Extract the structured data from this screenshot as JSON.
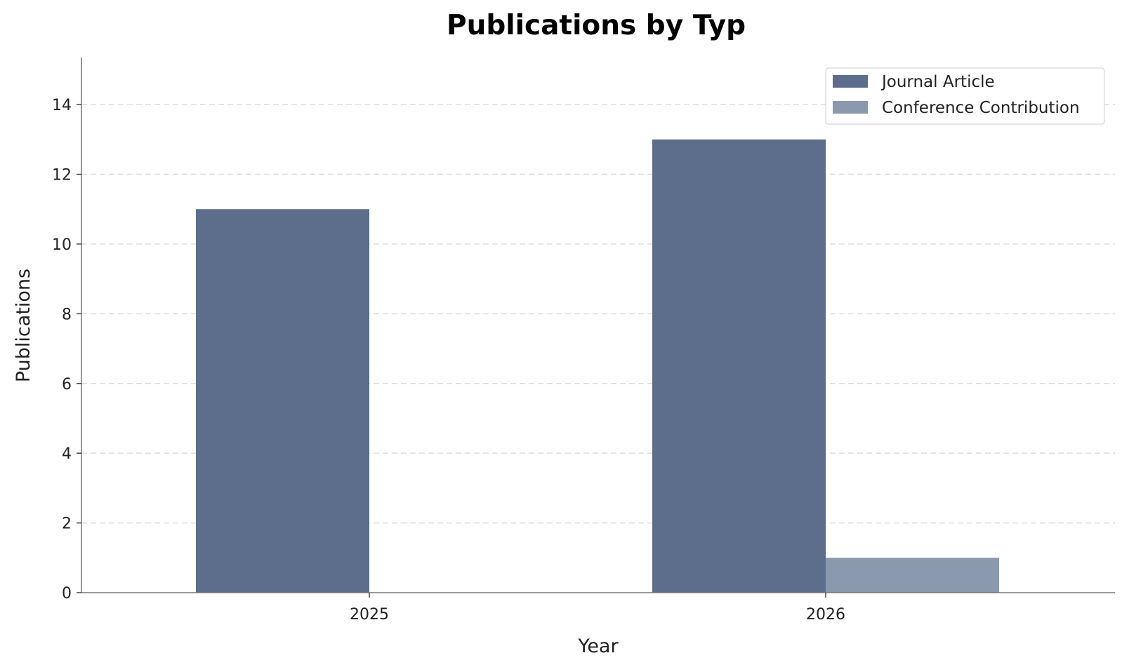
{
  "chart_data": {
    "type": "bar",
    "title": "Publications by Typ",
    "xlabel": "Year",
    "ylabel": "Publications",
    "categories": [
      "2025",
      "2026"
    ],
    "series": [
      {
        "name": "Journal Article",
        "color": "#5c6e8c",
        "values": [
          11,
          13
        ]
      },
      {
        "name": "Conference Contribution",
        "color": "#8a99ad",
        "values": [
          0,
          1
        ]
      }
    ],
    "ylim": [
      0,
      15.35
    ],
    "yticks": [
      0,
      2,
      4,
      6,
      8,
      10,
      12,
      14
    ],
    "grid": true,
    "legend_position": "top-right"
  }
}
